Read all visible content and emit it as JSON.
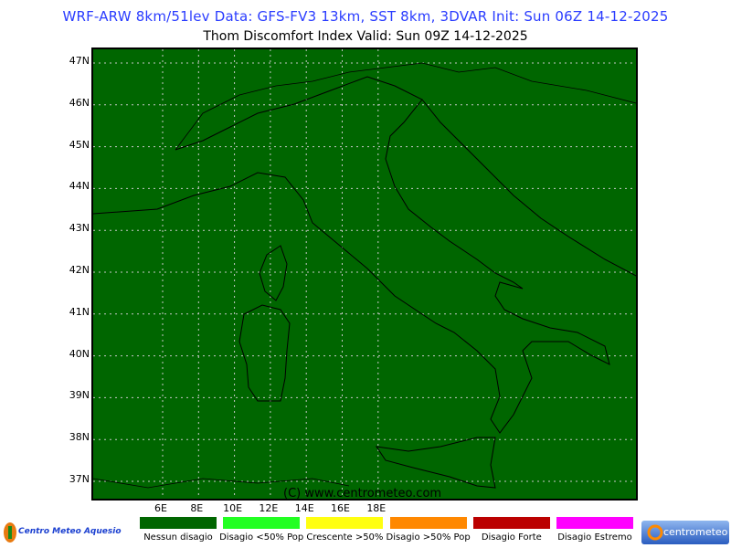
{
  "header": {
    "model_line": "WRF-ARW 8km/51lev  Data: GFS-FV3 13km, SST 8km, 3DVAR  Init: Sun 06Z 14-12-2025",
    "title_line": "Thom Discomfort Index    Valid: Sun 09Z 14-12-2025"
  },
  "map": {
    "background_color": "#006600",
    "lat_labels": [
      "47N",
      "46N",
      "45N",
      "44N",
      "43N",
      "42N",
      "41N",
      "40N",
      "39N",
      "38N",
      "37N"
    ],
    "lon_labels": [
      "6E",
      "8E",
      "10E",
      "12E",
      "14E",
      "16E",
      "18E"
    ],
    "copyright": "(C) www.centrometeo.com"
  },
  "legend": [
    {
      "label": "Nessun disagio",
      "color": "#006600"
    },
    {
      "label": "Disagio <50% Pop",
      "color": "#22ff22"
    },
    {
      "label": "Crescente >50%",
      "color": "#ffff11"
    },
    {
      "label": "Disagio >50% Pop",
      "color": "#ff8800"
    },
    {
      "label": "Disagio Forte",
      "color": "#bb0000"
    },
    {
      "label": "Disagio Estremo",
      "color": "#ff00ff"
    }
  ],
  "logos": {
    "left": "Centro Meteo Aquesio",
    "right": "centrometeo"
  }
}
